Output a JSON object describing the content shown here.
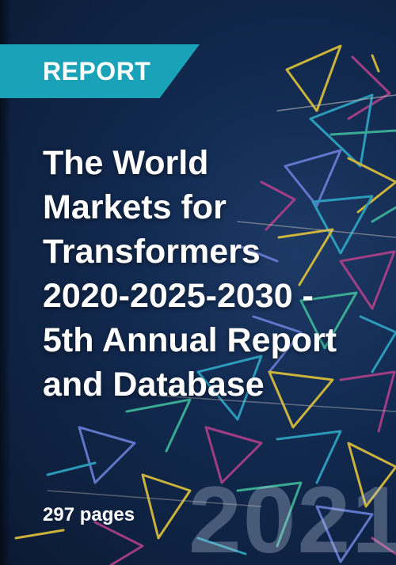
{
  "badge": {
    "label": "REPORT",
    "color": "#1aa3b8"
  },
  "title_lines": [
    "The World",
    "Markets for",
    "Transformers",
    "2020-2025-2030 -",
    "5th Annual Report",
    "and Database"
  ],
  "pages": "297 pages",
  "year": "2021",
  "colors": {
    "background": "#0b1a33",
    "text": "#ffffff",
    "decor": [
      "#2fa6c4",
      "#e0c23a",
      "#b0408a",
      "#6a7fd8",
      "#3fb89a",
      "#d4d0c4"
    ]
  },
  "decor_icon": "geometric-triangle-pattern"
}
